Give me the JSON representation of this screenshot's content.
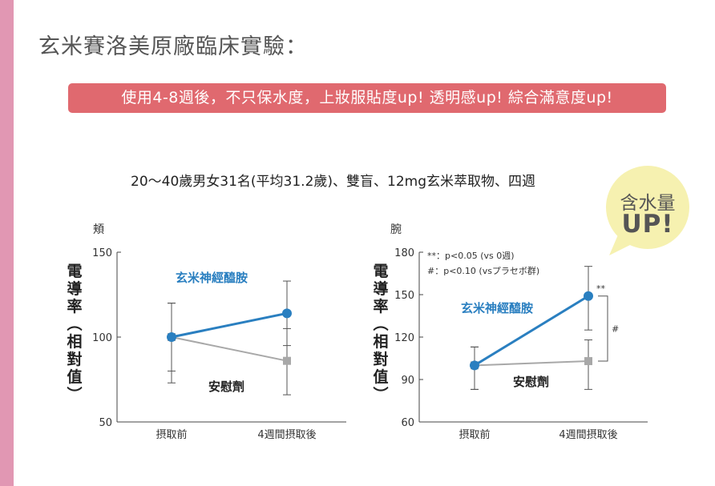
{
  "page": {
    "title": "玄米賽洛美原廠臨床實驗：",
    "banner": "使用4-8週後，不只保水度，上妝服貼度up! 透明感up!  綜合滿意度up!",
    "subtitle": "20～40歲男女31名(平均31.2歲)、雙盲、12mg玄米萃取物、四週",
    "bubble": {
      "line1": "含水量",
      "line2": "UP!"
    }
  },
  "colors": {
    "accent_pink": "#e197b3",
    "banner_red": "#e0696f",
    "series_blue": "#2a7fc0",
    "series_gray": "#a8a8a8",
    "bubble_yellow": "#f6f1b0"
  },
  "chart_data": [
    {
      "type": "line",
      "panel_label": "頬",
      "ylabel": "電導率（相對值）",
      "categories": [
        "摂取前",
        "4週間摂取後"
      ],
      "ylim": [
        50,
        150
      ],
      "yticks": [
        50,
        100,
        150
      ],
      "series": [
        {
          "name": "玄米神經醯胺",
          "values": [
            100,
            114
          ],
          "err_high": [
            120,
            133
          ],
          "err_low": [
            80,
            95
          ],
          "color": "#2a7fc0",
          "marker": "circle"
        },
        {
          "name": "安慰劑",
          "values": [
            100,
            86
          ],
          "err_high": [
            120,
            105
          ],
          "err_low": [
            73,
            66
          ],
          "color": "#a8a8a8",
          "marker": "square"
        }
      ]
    },
    {
      "type": "line",
      "panel_label": "腕",
      "ylabel": "電導率（相對值）",
      "categories": [
        "摂取前",
        "4週間摂取後"
      ],
      "ylim": [
        60,
        180
      ],
      "yticks": [
        60,
        90,
        120,
        150,
        180
      ],
      "legend_notes": [
        "**：p<0.05 (vs 0週)",
        "#：p<0.10 (vsプラセボ群)"
      ],
      "series": [
        {
          "name": "玄米神經醯胺",
          "values": [
            100,
            149
          ],
          "err_high": [
            113,
            170
          ],
          "err_low": [
            83,
            125
          ],
          "color": "#2a7fc0",
          "marker": "circle",
          "annotation": "**"
        },
        {
          "name": "安慰劑",
          "values": [
            100,
            103
          ],
          "err_high": [
            113,
            118
          ],
          "err_low": [
            83,
            83
          ],
          "color": "#a8a8a8",
          "marker": "square"
        }
      ],
      "bracket_label": "#"
    }
  ]
}
